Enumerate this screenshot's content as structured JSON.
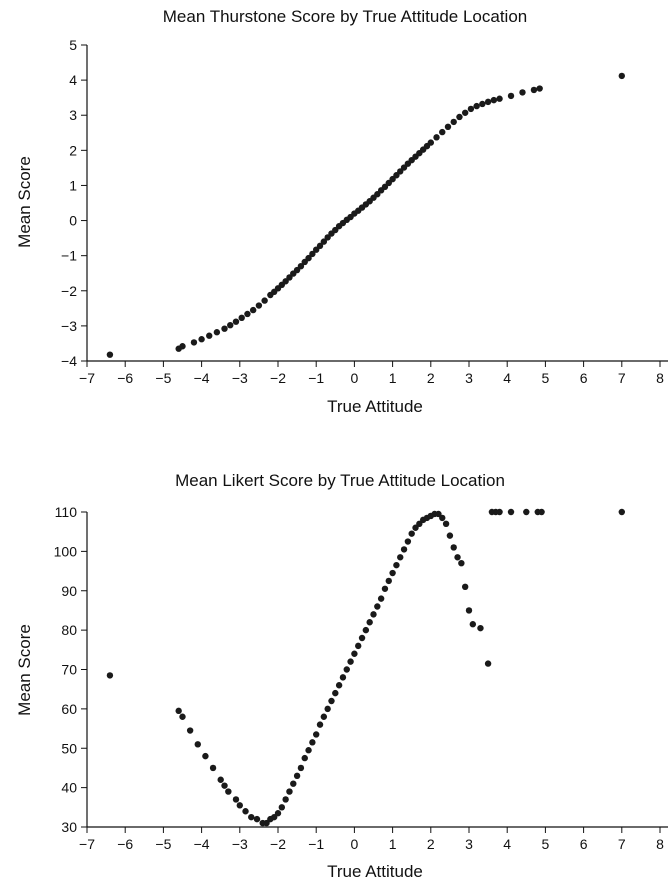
{
  "chart_data": [
    {
      "type": "scatter",
      "title": "Mean Thurstone Score by True Attitude Location",
      "xlabel": "True Attitude",
      "ylabel": "Mean Score",
      "xlim": [
        -7,
        8
      ],
      "ylim": [
        -4,
        5
      ],
      "xticks": [
        "−7",
        "−6",
        "−5",
        "−4",
        "−3",
        "−2",
        "−1",
        "0",
        "1",
        "2",
        "3",
        "4",
        "5",
        "6",
        "7",
        "8"
      ],
      "yticks": [
        "−4",
        "−3",
        "−2",
        "−1",
        "0",
        "1",
        "2",
        "3",
        "4",
        "5"
      ],
      "grid": false,
      "x": [
        -6.4,
        -4.6,
        -4.5,
        -4.2,
        -4.0,
        -3.8,
        -3.6,
        -3.4,
        -3.25,
        -3.1,
        -2.95,
        -2.8,
        -2.65,
        -2.5,
        -2.35,
        -2.2,
        -2.1,
        -2.0,
        -1.9,
        -1.8,
        -1.7,
        -1.6,
        -1.5,
        -1.4,
        -1.3,
        -1.2,
        -1.1,
        -1.0,
        -0.9,
        -0.8,
        -0.7,
        -0.6,
        -0.5,
        -0.4,
        -0.3,
        -0.2,
        -0.1,
        0.0,
        0.1,
        0.2,
        0.3,
        0.4,
        0.5,
        0.6,
        0.7,
        0.8,
        0.9,
        1.0,
        1.1,
        1.2,
        1.3,
        1.4,
        1.5,
        1.6,
        1.7,
        1.8,
        1.9,
        2.0,
        2.15,
        2.3,
        2.45,
        2.6,
        2.75,
        2.9,
        3.05,
        3.2,
        3.35,
        3.5,
        3.65,
        3.8,
        4.1,
        4.4,
        4.7,
        4.85,
        7.0
      ],
      "y": [
        -3.82,
        -3.65,
        -3.58,
        -3.47,
        -3.38,
        -3.28,
        -3.18,
        -3.08,
        -2.98,
        -2.88,
        -2.77,
        -2.66,
        -2.55,
        -2.42,
        -2.28,
        -2.12,
        -2.03,
        -1.93,
        -1.83,
        -1.73,
        -1.62,
        -1.51,
        -1.41,
        -1.3,
        -1.18,
        -1.07,
        -0.95,
        -0.83,
        -0.72,
        -0.6,
        -0.48,
        -0.37,
        -0.27,
        -0.16,
        -0.07,
        0.02,
        0.1,
        0.2,
        0.28,
        0.37,
        0.46,
        0.55,
        0.65,
        0.75,
        0.86,
        0.96,
        1.07,
        1.18,
        1.29,
        1.4,
        1.51,
        1.62,
        1.72,
        1.82,
        1.92,
        2.02,
        2.12,
        2.22,
        2.37,
        2.52,
        2.67,
        2.81,
        2.95,
        3.07,
        3.18,
        3.26,
        3.32,
        3.38,
        3.43,
        3.47,
        3.55,
        3.65,
        3.72,
        3.76,
        4.12
      ]
    },
    {
      "type": "scatter",
      "title": "Mean Likert Score by True Attitude Location",
      "xlabel": "True Attitude",
      "ylabel": "Mean Score",
      "xlim": [
        -7,
        8
      ],
      "ylim": [
        30,
        110
      ],
      "xticks": [
        "−7",
        "−6",
        "−5",
        "−4",
        "−3",
        "−2",
        "−1",
        "0",
        "1",
        "2",
        "3",
        "4",
        "5",
        "6",
        "7",
        "8"
      ],
      "yticks": [
        "30",
        "40",
        "50",
        "60",
        "70",
        "80",
        "90",
        "100",
        "110"
      ],
      "grid": false,
      "x": [
        -6.4,
        -4.6,
        -4.5,
        -4.3,
        -4.1,
        -3.9,
        -3.7,
        -3.5,
        -3.4,
        -3.3,
        -3.1,
        -3.0,
        -2.85,
        -2.7,
        -2.55,
        -2.4,
        -2.3,
        -2.2,
        -2.1,
        -2.0,
        -1.9,
        -1.8,
        -1.7,
        -1.6,
        -1.5,
        -1.4,
        -1.3,
        -1.2,
        -1.1,
        -1.0,
        -0.9,
        -0.8,
        -0.7,
        -0.6,
        -0.5,
        -0.4,
        -0.3,
        -0.2,
        -0.1,
        0.0,
        0.1,
        0.2,
        0.3,
        0.4,
        0.5,
        0.6,
        0.7,
        0.8,
        0.9,
        1.0,
        1.1,
        1.2,
        1.3,
        1.4,
        1.5,
        1.6,
        1.7,
        1.8,
        1.9,
        2.0,
        2.1,
        2.2,
        2.3,
        2.4,
        2.5,
        2.6,
        2.7,
        2.8,
        2.9,
        3.0,
        3.1,
        3.3,
        3.5,
        3.6,
        3.7,
        3.8,
        4.1,
        4.5,
        4.8,
        4.9,
        7.0
      ],
      "y": [
        68.5,
        59.5,
        58.0,
        54.5,
        51.0,
        48.0,
        45.0,
        42.0,
        40.5,
        39.0,
        37.0,
        35.5,
        34.0,
        32.5,
        32.0,
        31.0,
        31.0,
        32.0,
        32.5,
        33.5,
        35.0,
        37.0,
        39.0,
        41.0,
        43.0,
        45.0,
        47.5,
        49.5,
        51.5,
        53.5,
        56.0,
        58.0,
        60.0,
        62.0,
        64.0,
        66.0,
        68.0,
        70.0,
        72.0,
        74.0,
        76.0,
        78.0,
        80.0,
        82.0,
        84.0,
        86.0,
        88.0,
        90.5,
        92.5,
        94.5,
        96.5,
        98.5,
        100.5,
        102.5,
        104.5,
        106.0,
        107.0,
        108.0,
        108.5,
        109.0,
        109.5,
        109.5,
        108.5,
        107.0,
        104.0,
        101.0,
        98.5,
        97.0,
        91.0,
        85.0,
        81.5,
        80.5,
        71.5,
        110.0,
        110.0,
        110.0,
        110.0,
        110.0,
        110.0,
        110.0,
        110.0
      ]
    }
  ]
}
